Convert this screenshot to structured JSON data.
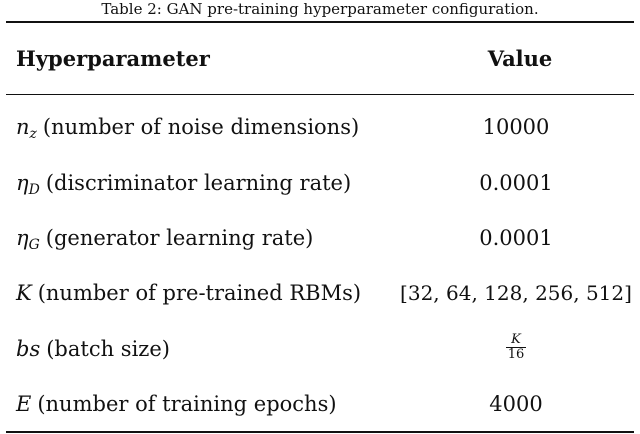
{
  "caption": "Table 2: GAN pre-training hyperparameter configuration.",
  "header": {
    "param": "Hyperparameter",
    "value": "Value"
  },
  "rows": [
    {
      "symbol": "n",
      "subscript": "z",
      "desc": "(number of noise dimensions)",
      "value": "10000"
    },
    {
      "symbol": "η",
      "subscript": "D",
      "desc": "(discriminator learning rate)",
      "value": "0.0001"
    },
    {
      "symbol": "η",
      "subscript": "G",
      "desc": "(generator learning rate)",
      "value": "0.0001"
    },
    {
      "symbol": "K",
      "subscript": "",
      "desc": "(number of pre-trained RBMs)",
      "value": "[32, 64, 128, 256, 512]"
    },
    {
      "symbol": "bs",
      "subscript": "",
      "desc": "(batch size)",
      "value_num": "K",
      "value_den": "16"
    },
    {
      "symbol": "E",
      "subscript": "",
      "desc": "(number of training epochs)",
      "value": "4000"
    }
  ]
}
